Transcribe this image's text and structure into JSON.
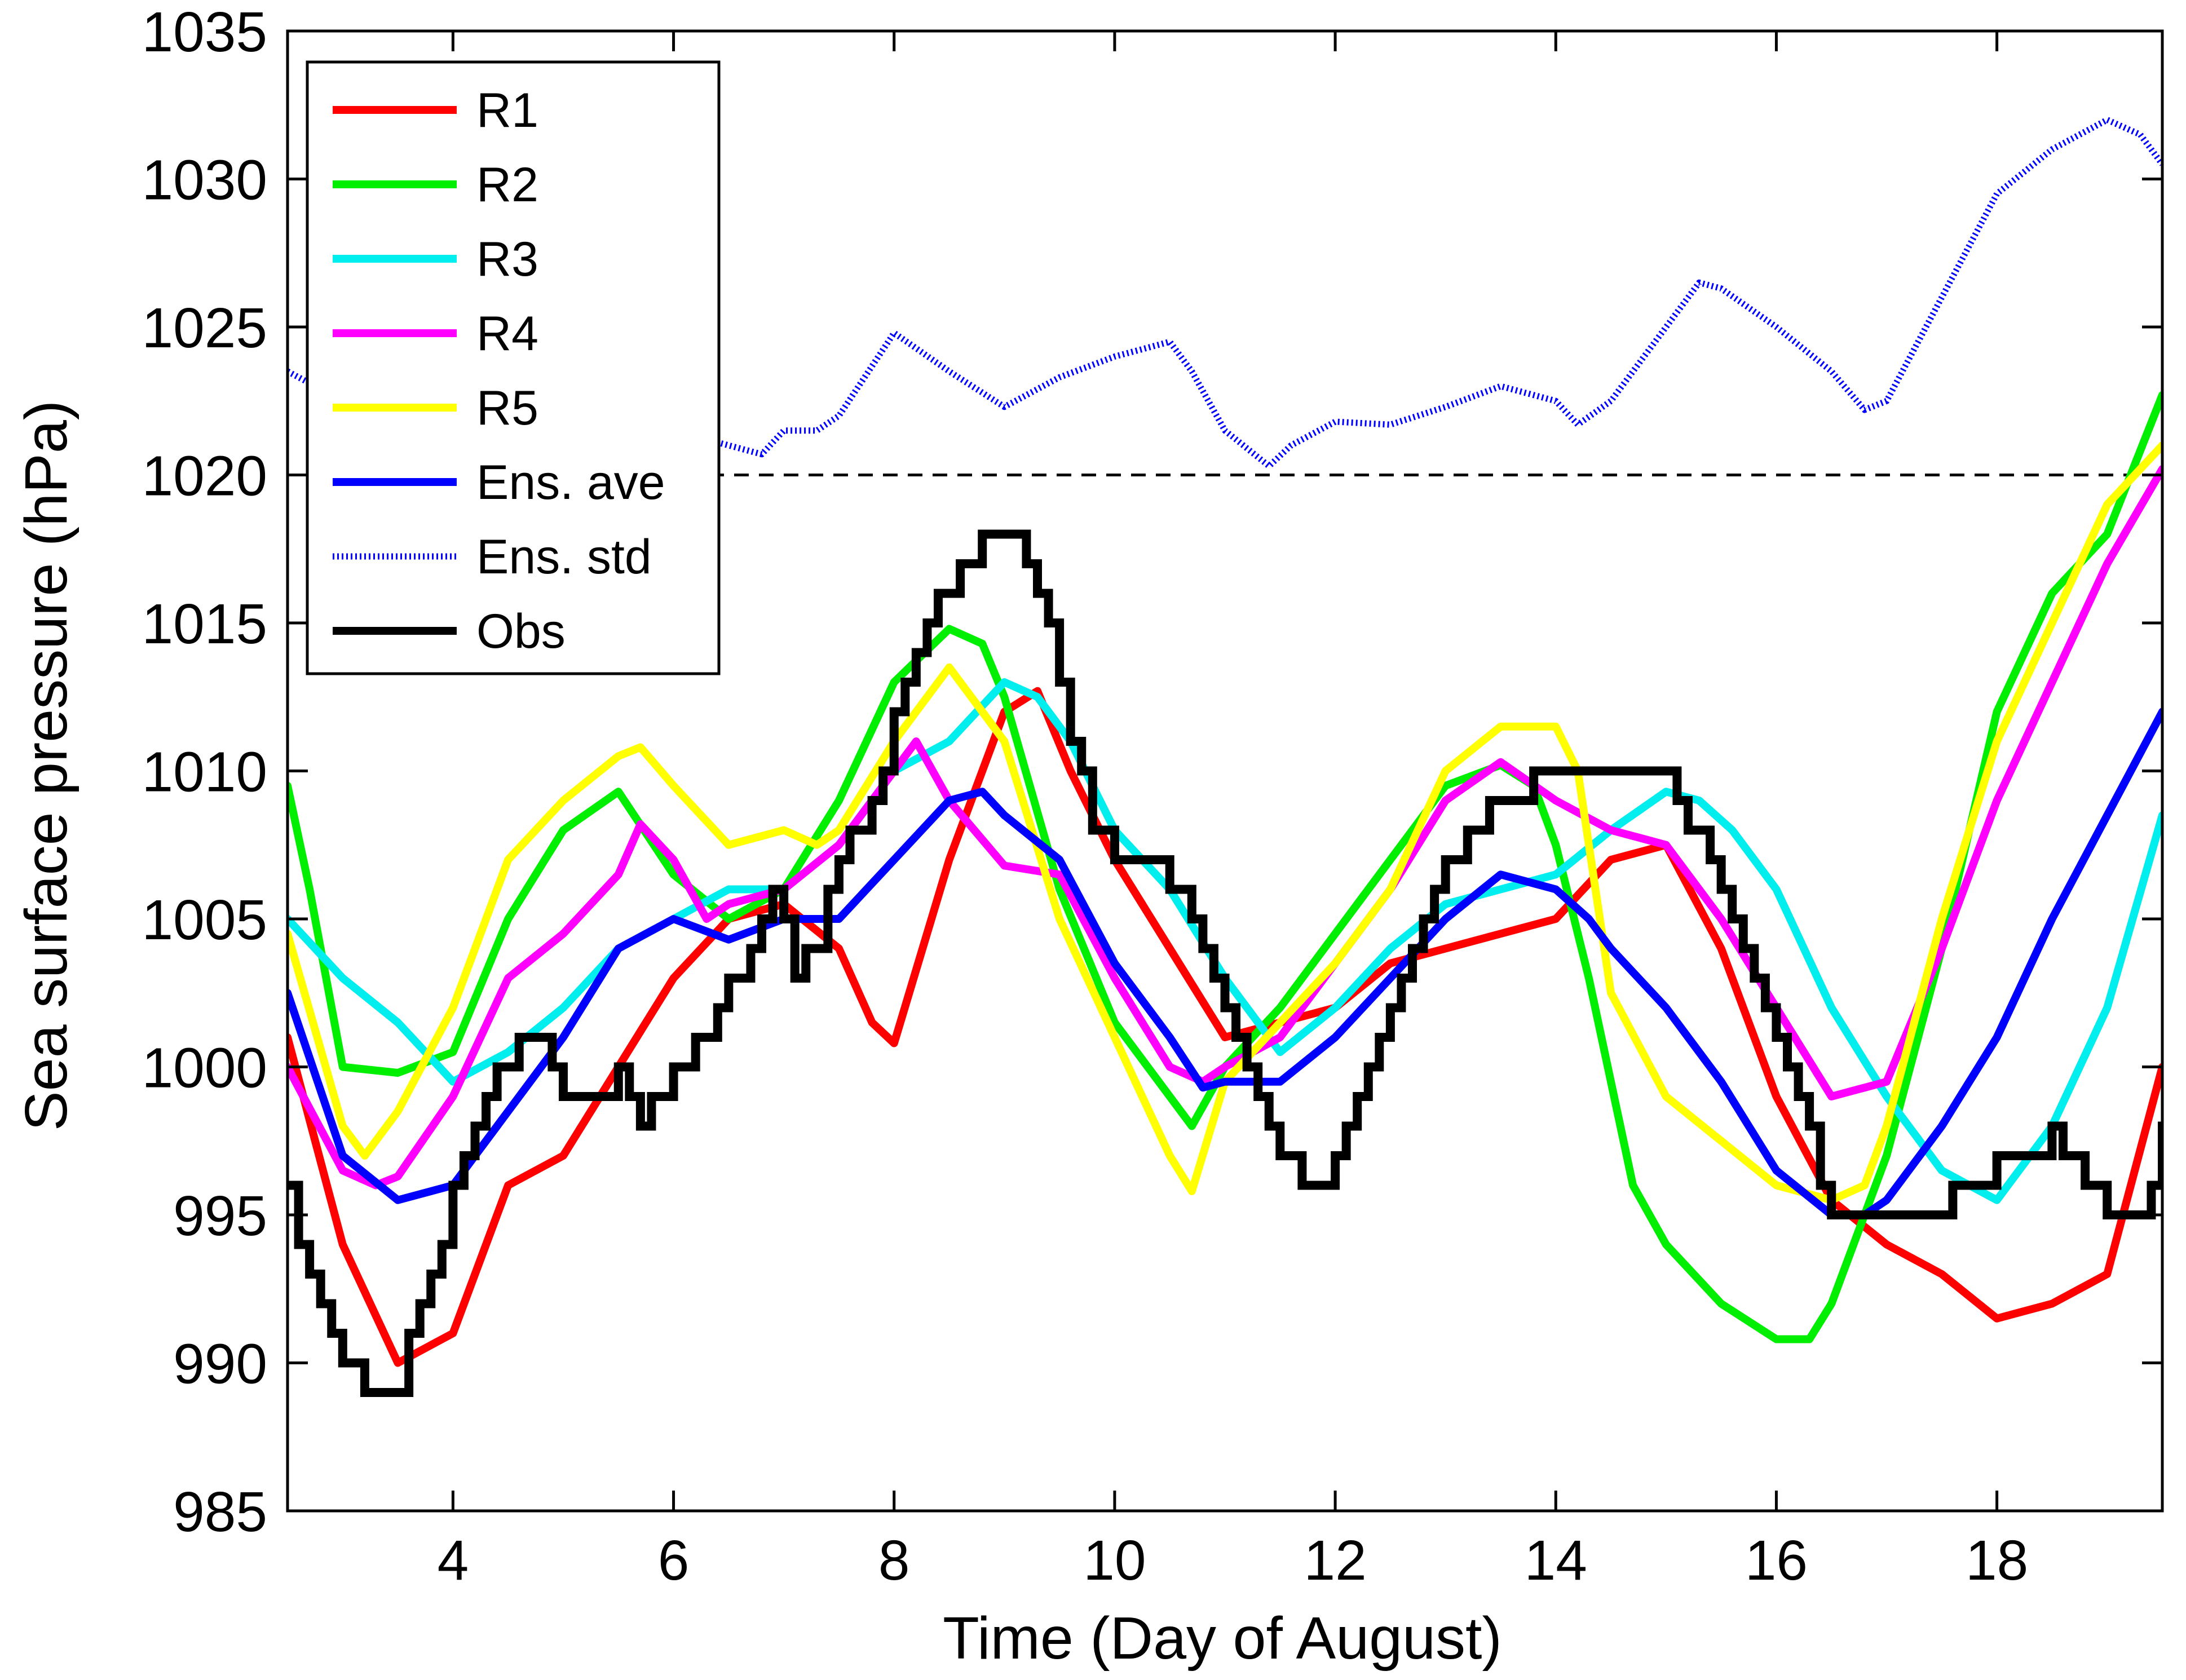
{
  "chart_data": {
    "type": "line",
    "title": "",
    "xlabel": "Time (Day of August)",
    "ylabel": "Sea surface pressure (hPa)",
    "xlim": [
      2.5,
      19.5
    ],
    "ylim": [
      985,
      1035
    ],
    "xticks": [
      4,
      6,
      8,
      10,
      12,
      14,
      16,
      18
    ],
    "yticks": [
      985,
      990,
      995,
      1000,
      1005,
      1010,
      1015,
      1020,
      1025,
      1030,
      1035
    ],
    "xtick_labels": [
      "4",
      "6",
      "8",
      "10",
      "12",
      "14",
      "16",
      "18"
    ],
    "ytick_labels": [
      "985",
      "990",
      "995",
      "1000",
      "1005",
      "1010",
      "1015",
      "1020",
      "1025",
      "1030",
      "1035"
    ],
    "reference_line": {
      "y": 1020,
      "style": "dashed",
      "color": "#000000"
    },
    "legend_position": "top-left",
    "series": [
      {
        "name": "R1",
        "color": "#ff0000",
        "style": "solid",
        "x": [
          2.5,
          3.0,
          3.5,
          4.0,
          4.5,
          5.0,
          5.5,
          6.0,
          6.5,
          7.0,
          7.5,
          7.8,
          8.0,
          8.5,
          9.0,
          9.3,
          9.6,
          10.0,
          10.5,
          11.0,
          11.5,
          12.0,
          12.5,
          13.0,
          13.5,
          14.0,
          14.5,
          15.0,
          15.5,
          16.0,
          16.5,
          17.0,
          17.5,
          18.0,
          18.5,
          19.0,
          19.5
        ],
        "values": [
          1001,
          994,
          990,
          991,
          996,
          997,
          1000,
          1003,
          1005,
          1005.5,
          1004,
          1001.5,
          1000.8,
          1007,
          1012,
          1012.7,
          1010,
          1007,
          1004,
          1001,
          1001.5,
          1002,
          1003.5,
          1004,
          1004.5,
          1005,
          1007,
          1007.5,
          1004,
          999,
          995.5,
          994,
          993,
          991.5,
          992,
          993,
          1000
        ]
      },
      {
        "name": "R2",
        "color": "#00ee00",
        "style": "solid",
        "x": [
          2.5,
          2.7,
          3.0,
          3.5,
          4.0,
          4.5,
          5.0,
          5.5,
          6.0,
          6.5,
          7.0,
          7.5,
          8.0,
          8.5,
          8.8,
          9.0,
          9.5,
          10.0,
          10.5,
          10.7,
          11.0,
          11.5,
          12.0,
          12.5,
          13.0,
          13.5,
          13.8,
          14.0,
          14.3,
          14.7,
          15.0,
          15.5,
          16.0,
          16.3,
          16.5,
          17.0,
          17.5,
          18.0,
          18.5,
          19.0,
          19.5
        ],
        "values": [
          1009.5,
          1006,
          1000,
          999.8,
          1000.5,
          1005,
          1008,
          1009.3,
          1006.5,
          1005,
          1006,
          1009,
          1013,
          1014.8,
          1014.3,
          1012.5,
          1006,
          1001.5,
          999,
          998,
          1000,
          1002,
          1004.5,
          1007,
          1009.5,
          1010.2,
          1009.5,
          1007.5,
          1003,
          996,
          994,
          992,
          990.8,
          990.8,
          992,
          997,
          1004,
          1012,
          1016,
          1018,
          1022.7
        ]
      },
      {
        "name": "R3",
        "color": "#00eeee",
        "style": "solid",
        "x": [
          2.5,
          3.0,
          3.5,
          4.0,
          4.5,
          5.0,
          5.5,
          6.0,
          6.5,
          7.0,
          7.5,
          8.0,
          8.5,
          9.0,
          9.3,
          9.6,
          10.0,
          10.5,
          11.0,
          11.3,
          11.5,
          12.0,
          12.5,
          13.0,
          13.5,
          14.0,
          14.5,
          15.0,
          15.3,
          15.6,
          16.0,
          16.5,
          17.0,
          17.5,
          18.0,
          18.5,
          19.0,
          19.5
        ],
        "values": [
          1005,
          1003,
          1001.5,
          999.5,
          1000.5,
          1002,
          1004,
          1005,
          1006,
          1006,
          1007.5,
          1010,
          1011,
          1013,
          1012.5,
          1011,
          1008,
          1006,
          1003,
          1001.5,
          1000.5,
          1002,
          1004,
          1005.5,
          1006,
          1006.5,
          1008,
          1009.3,
          1009,
          1008,
          1006,
          1002,
          999,
          996.5,
          995.5,
          998,
          1002,
          1008.5
        ]
      },
      {
        "name": "R4",
        "color": "#ff00ff",
        "style": "solid",
        "x": [
          2.5,
          3.0,
          3.3,
          3.5,
          4.0,
          4.5,
          5.0,
          5.5,
          5.7,
          6.0,
          6.3,
          6.5,
          7.0,
          7.5,
          8.0,
          8.2,
          8.5,
          9.0,
          9.5,
          10.0,
          10.5,
          10.8,
          11.0,
          11.5,
          12.0,
          12.5,
          13.0,
          13.5,
          14.0,
          14.5,
          15.0,
          15.5,
          16.0,
          16.5,
          17.0,
          17.5,
          18.0,
          18.5,
          19.0,
          19.5
        ],
        "values": [
          1000,
          996.5,
          996,
          996.3,
          999,
          1003,
          1004.5,
          1006.5,
          1008.2,
          1007,
          1005,
          1005.5,
          1006,
          1007.5,
          1010,
          1011,
          1009,
          1006.8,
          1006.5,
          1003,
          1000,
          999.5,
          1000,
          1001,
          1003.5,
          1006,
          1009,
          1010.3,
          1009,
          1008,
          1007.5,
          1005,
          1002,
          999,
          999.5,
          1004,
          1009,
          1013,
          1017,
          1020.2
        ]
      },
      {
        "name": "R5",
        "color": "#ffff00",
        "style": "solid",
        "x": [
          2.5,
          3.0,
          3.2,
          3.5,
          4.0,
          4.5,
          5.0,
          5.5,
          5.7,
          6.0,
          6.5,
          7.0,
          7.3,
          7.5,
          8.0,
          8.5,
          9.0,
          9.5,
          10.0,
          10.5,
          10.7,
          11.0,
          11.5,
          12.0,
          12.5,
          13.0,
          13.5,
          14.0,
          14.2,
          14.5,
          15.0,
          15.5,
          16.0,
          16.5,
          16.8,
          17.0,
          17.5,
          18.0,
          18.5,
          19.0,
          19.5
        ],
        "values": [
          1004.5,
          998,
          997,
          998.5,
          1002,
          1007,
          1009,
          1010.5,
          1010.8,
          1009.5,
          1007.5,
          1008,
          1007.5,
          1008,
          1011,
          1013.5,
          1011,
          1005,
          1001,
          997,
          995.8,
          999.5,
          1001.5,
          1003.5,
          1006,
          1010,
          1011.5,
          1011.5,
          1010,
          1002.5,
          999,
          997.5,
          996,
          995.5,
          996,
          998,
          1005,
          1011,
          1015,
          1019,
          1021
        ]
      },
      {
        "name": "Ens. ave",
        "color": "#0000ff",
        "style": "solid",
        "x": [
          2.5,
          3.0,
          3.5,
          4.0,
          4.5,
          5.0,
          5.5,
          6.0,
          6.5,
          7.0,
          7.5,
          8.0,
          8.5,
          8.8,
          9.0,
          9.5,
          10.0,
          10.5,
          10.8,
          11.0,
          11.5,
          12.0,
          12.5,
          13.0,
          13.5,
          14.0,
          14.3,
          14.5,
          15.0,
          15.5,
          16.0,
          16.5,
          16.8,
          17.0,
          17.5,
          18.0,
          18.5,
          19.0,
          19.5
        ],
        "values": [
          1002.5,
          997,
          995.5,
          996,
          998.5,
          1001,
          1004,
          1005,
          1004.3,
          1005,
          1005,
          1007,
          1009,
          1009.3,
          1008.5,
          1007,
          1003.5,
          1001,
          999.3,
          999.5,
          999.5,
          1001,
          1003,
          1005,
          1006.5,
          1006,
          1005,
          1004,
          1002,
          999.5,
          996.5,
          995,
          995,
          995.5,
          998,
          1001,
          1005,
          1008.5,
          1012
        ]
      },
      {
        "name": "Ens. std",
        "color": "#0000ff",
        "style": "dotted",
        "x": [
          2.5,
          3.0,
          3.5,
          4.0,
          4.5,
          5.0,
          5.5,
          6.0,
          6.5,
          6.8,
          7.0,
          7.3,
          7.5,
          8.0,
          8.5,
          9.0,
          9.5,
          10.0,
          10.5,
          10.7,
          11.0,
          11.4,
          11.6,
          12.0,
          12.5,
          13.0,
          13.5,
          14.0,
          14.2,
          14.5,
          15.0,
          15.3,
          15.5,
          16.0,
          16.5,
          16.8,
          17.0,
          17.5,
          18.0,
          18.5,
          19.0,
          19.3,
          19.5
        ],
        "values": [
          1023.5,
          1022.5,
          1022,
          1022,
          1021.5,
          1021.5,
          1021.5,
          1021.5,
          1021,
          1020.7,
          1021.5,
          1021.5,
          1022,
          1024.8,
          1023.5,
          1022.3,
          1023.3,
          1024,
          1024.5,
          1023.5,
          1021.5,
          1020.3,
          1021,
          1021.8,
          1021.7,
          1022.3,
          1023,
          1022.5,
          1021.7,
          1022.5,
          1025,
          1026.5,
          1026.3,
          1025,
          1023.5,
          1022.2,
          1022.5,
          1026,
          1029.5,
          1031,
          1032,
          1031.5,
          1030.5
        ]
      },
      {
        "name": "Obs",
        "color": "#000000",
        "style": "step",
        "x": [
          2.5,
          2.6,
          2.7,
          2.8,
          2.9,
          3.0,
          3.1,
          3.2,
          3.3,
          3.4,
          3.5,
          3.6,
          3.7,
          3.8,
          3.9,
          4.0,
          4.1,
          4.2,
          4.3,
          4.4,
          4.6,
          4.8,
          4.9,
          5.0,
          5.2,
          5.4,
          5.5,
          5.6,
          5.7,
          5.8,
          5.9,
          6.0,
          6.1,
          6.2,
          6.3,
          6.4,
          6.5,
          6.6,
          6.7,
          6.8,
          6.9,
          7.0,
          7.1,
          7.2,
          7.3,
          7.4,
          7.5,
          7.6,
          7.7,
          7.8,
          7.9,
          8.0,
          8.1,
          8.2,
          8.3,
          8.4,
          8.5,
          8.6,
          8.7,
          8.8,
          8.9,
          9.0,
          9.1,
          9.2,
          9.3,
          9.4,
          9.5,
          9.6,
          9.7,
          9.8,
          9.9,
          10.0,
          10.1,
          10.3,
          10.5,
          10.6,
          10.7,
          10.8,
          10.9,
          11.0,
          11.1,
          11.2,
          11.3,
          11.4,
          11.5,
          11.6,
          11.7,
          11.8,
          11.9,
          12.0,
          12.1,
          12.2,
          12.3,
          12.4,
          12.5,
          12.6,
          12.7,
          12.8,
          12.9,
          13.0,
          13.1,
          13.2,
          13.3,
          13.4,
          13.5,
          13.6,
          13.8,
          14.0,
          14.5,
          15.0,
          15.1,
          15.2,
          15.3,
          15.4,
          15.5,
          15.6,
          15.7,
          15.8,
          15.9,
          16.0,
          16.1,
          16.2,
          16.3,
          16.4,
          16.5,
          16.6,
          16.7,
          16.8,
          16.9,
          17.0,
          17.5,
          17.6,
          17.8,
          18.0,
          18.2,
          18.4,
          18.5,
          18.6,
          18.8,
          19.0,
          19.2,
          19.4,
          19.5
        ],
        "values": [
          996,
          994,
          993,
          992,
          991,
          990,
          990,
          989,
          989,
          989,
          989,
          991,
          992,
          993,
          994,
          996,
          997,
          998,
          999,
          1000,
          1001,
          1001,
          1000,
          999,
          999,
          999,
          1000,
          999,
          998,
          999,
          999,
          1000,
          1000,
          1001,
          1001,
          1002,
          1003,
          1003,
          1004,
          1005,
          1006,
          1005,
          1003,
          1004,
          1004,
          1006,
          1007,
          1008,
          1008,
          1009,
          1010,
          1012,
          1013,
          1014,
          1015,
          1016,
          1016,
          1017,
          1017,
          1018,
          1018,
          1018,
          1018,
          1017,
          1016,
          1015,
          1013,
          1011,
          1010,
          1008,
          1008,
          1007,
          1007,
          1007,
          1006,
          1006,
          1005,
          1004,
          1003,
          1002,
          1001,
          1000,
          999,
          998,
          997,
          997,
          996,
          996,
          996,
          997,
          998,
          999,
          1000,
          1001,
          1002,
          1003,
          1004,
          1005,
          1006,
          1007,
          1007,
          1008,
          1008,
          1009,
          1009,
          1009,
          1010,
          1010,
          1010,
          1010,
          1009,
          1008,
          1008,
          1007,
          1006,
          1005,
          1004,
          1003,
          1002,
          1001,
          1000,
          999,
          998,
          996,
          995,
          995,
          995,
          995,
          995,
          995,
          995,
          996,
          996,
          997,
          997,
          997,
          998,
          997,
          996,
          995,
          995,
          996,
          998
        ]
      }
    ]
  }
}
